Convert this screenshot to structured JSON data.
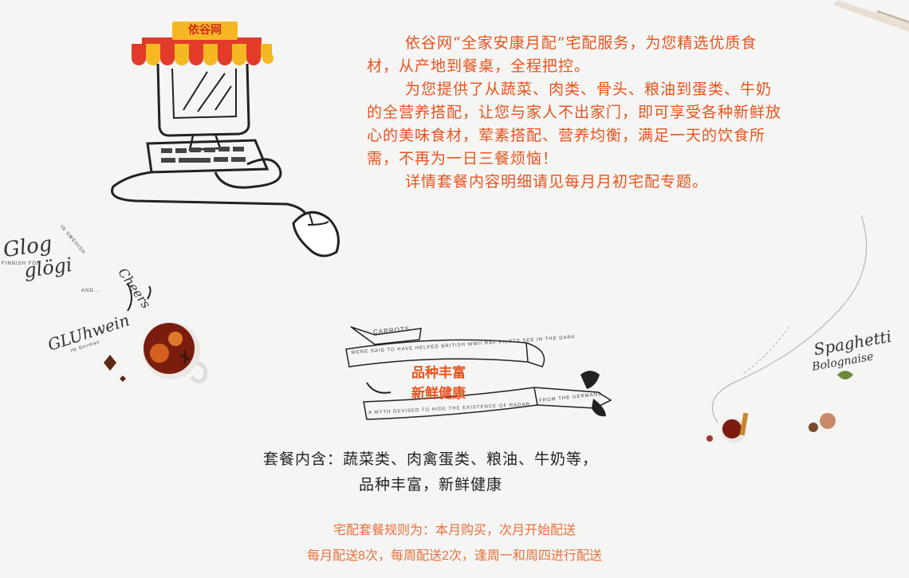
{
  "brand": {
    "sign": "依谷网"
  },
  "intro": {
    "p1": "依谷网“全家安康月配”宅配服务，为您精选优质食材，从产地到餐桌，全程把控。",
    "p2": "为您提供了从蔬菜、肉类、骨头、粮油到蛋类、牛奶的全营养搭配，让您与家人不出家门，即可享受各种新鲜放心的美味食材，荤素搭配、营养均衡，满足一天的饮食所需，不再为一日三餐烦恼！",
    "p3": "详情套餐内容明细请见每月月初宅配专题。"
  },
  "banner": {
    "line1": "品种丰富",
    "line2": "新鲜健康",
    "ribbon_top": "CARROTS",
    "ribbon_mid": "WERE SAID TO HAVE HELPED BRITISH WWII RAF PILOTS SEE IN THE DARK",
    "ribbon_bottom": "A MYTH DEVISED TO HIDE THE EXISTENCE OF RADAR",
    "ribbon_end": "FROM THE GERMANS"
  },
  "package": {
    "line1": "套餐内含：蔬菜类、肉禽蛋类、粮油、牛奶等，",
    "line2": "品种丰富，新鲜健康"
  },
  "rules": {
    "line1": "宅配套餐规则为：本月购买，次月开始配送",
    "line2": "每月配送8次，每周配送2次，逢周一和周四进行配送"
  },
  "deco": {
    "glog": "Glog",
    "glogi": "glögi",
    "in_swedish": "IN SWEDISH",
    "finnish": "FINNISH FOR",
    "and": "AND...",
    "cheers": "Cheers",
    "gluhwein": "GLUhwein",
    "in_german": "IN German",
    "spaghetti": "Spaghetti",
    "bolognaise": "Bolognaise"
  },
  "colors": {
    "accent": "#e8531d",
    "awning_red": "#e23b2a",
    "awning_yellow": "#f5b822"
  }
}
